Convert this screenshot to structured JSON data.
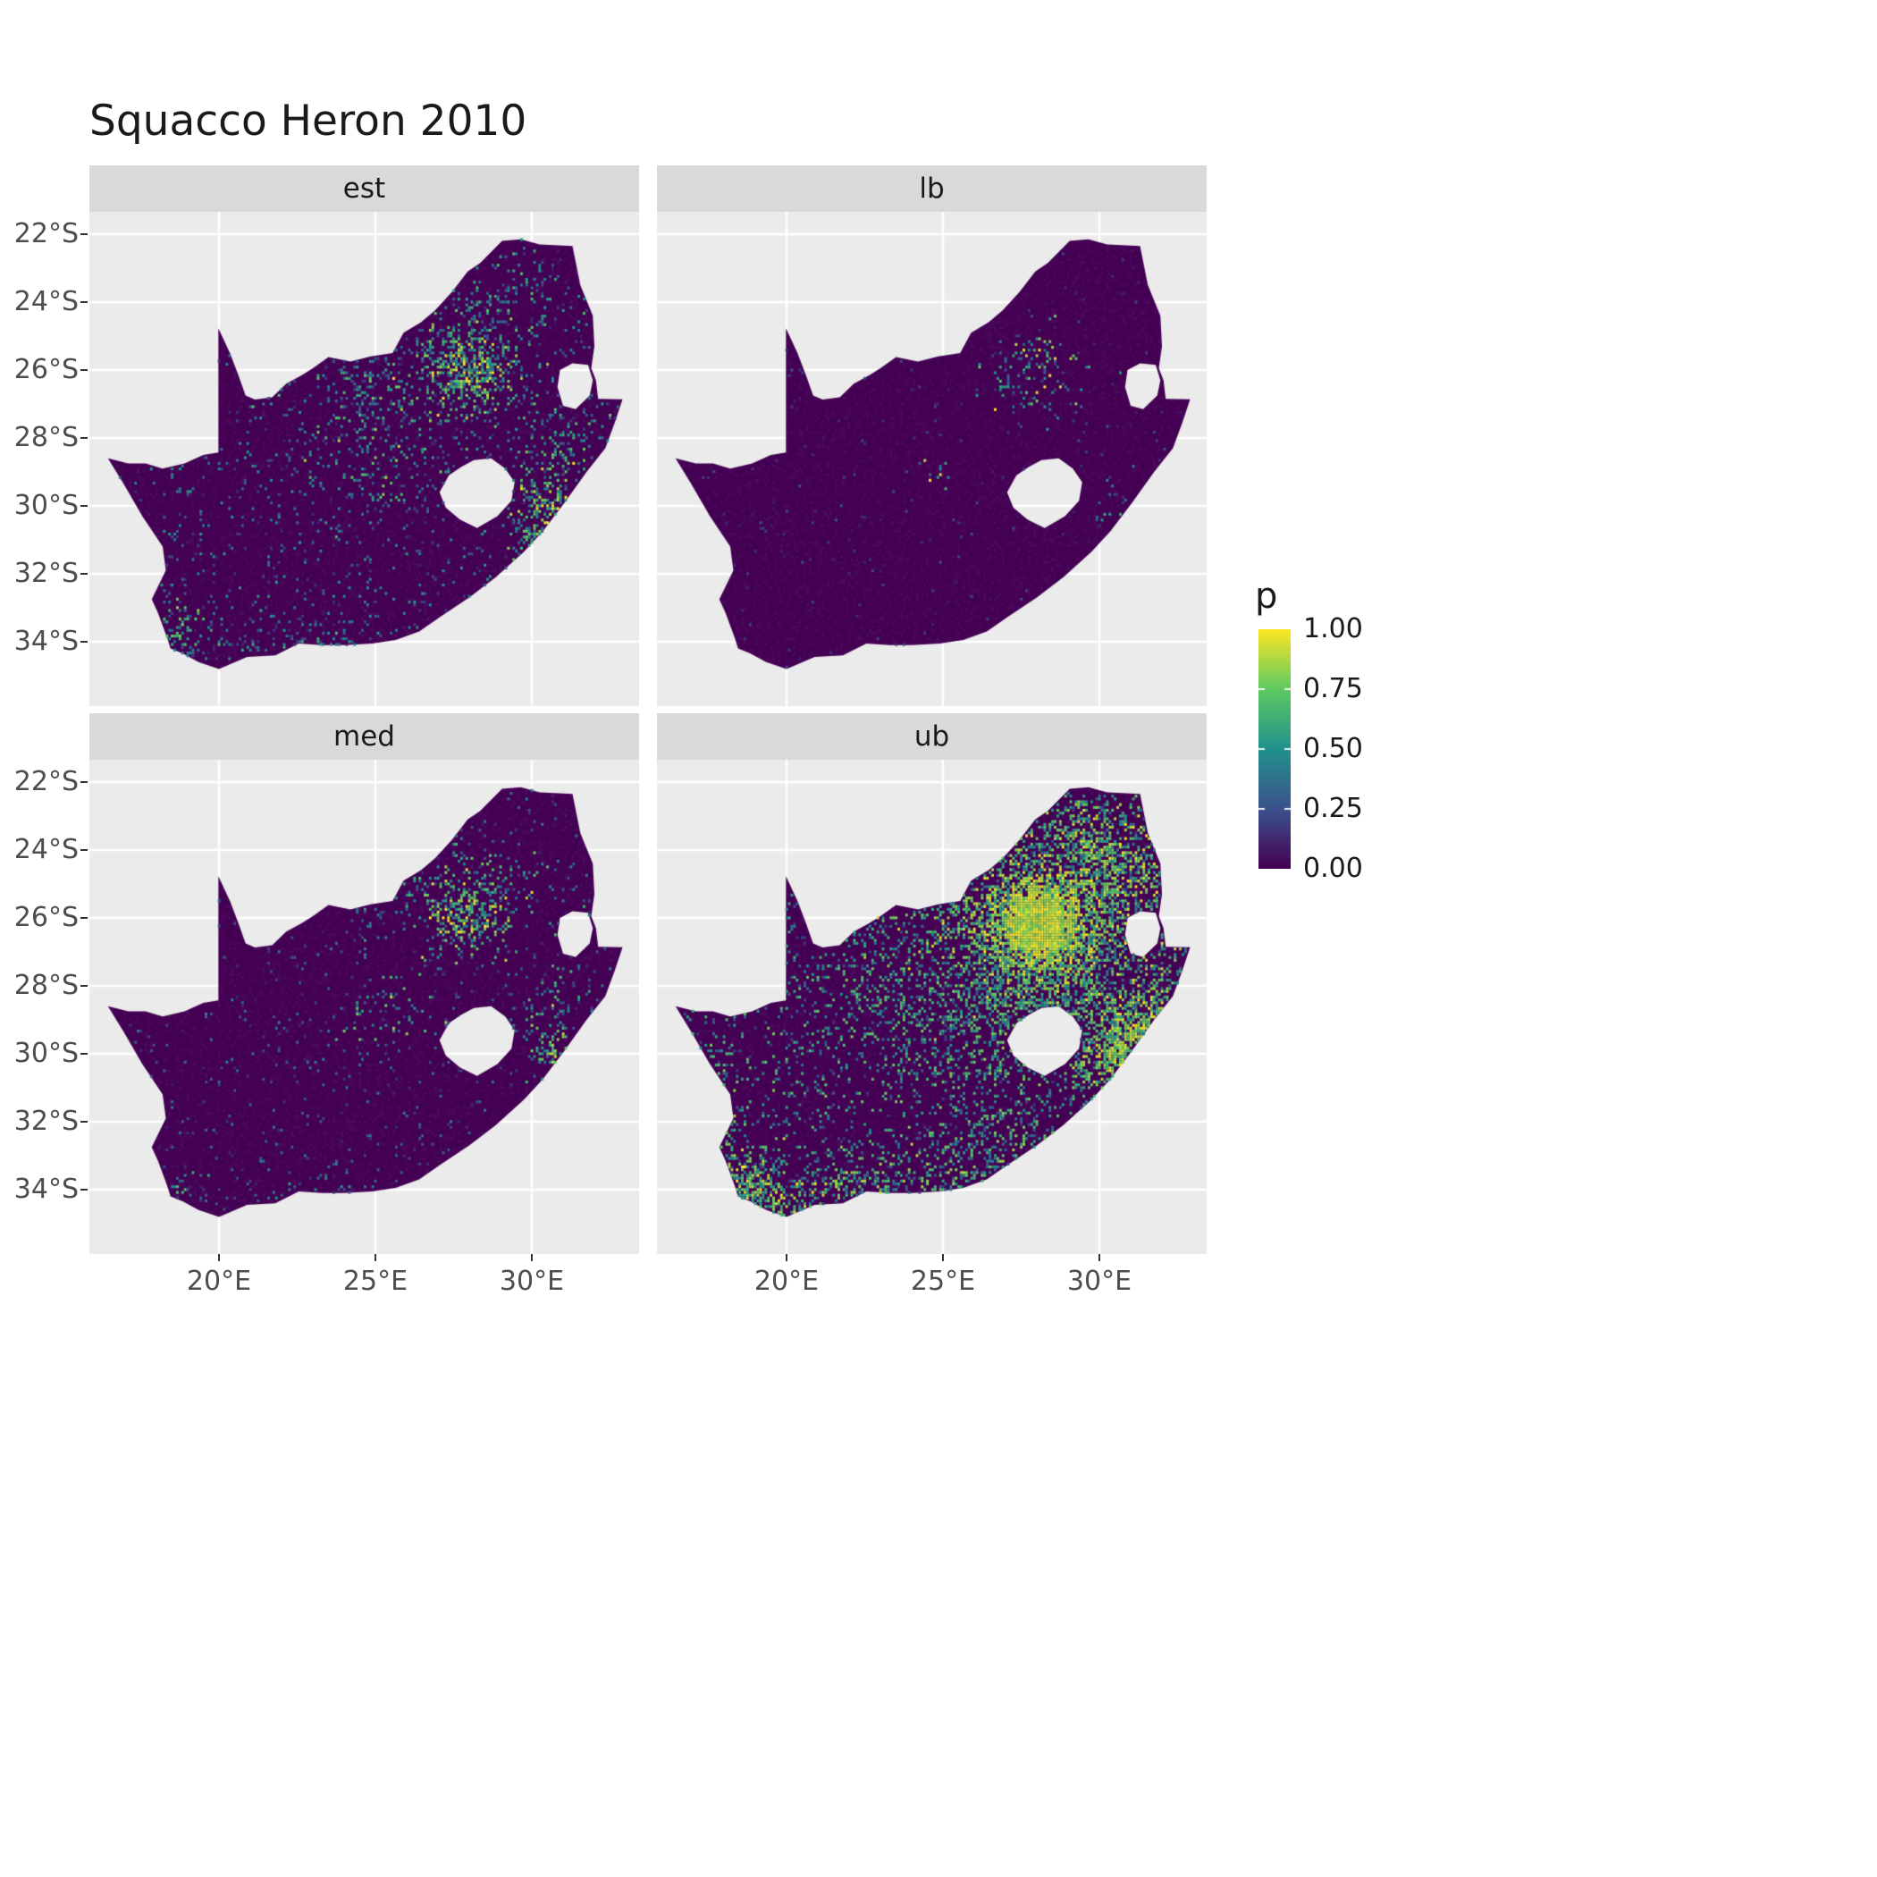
{
  "chart_data": {
    "type": "heatmap",
    "subtype": "faceted-raster-map",
    "title": "Squacco Heron 2010",
    "region": "South Africa pentad grid, occupancy probability",
    "facets": [
      {
        "id": "est",
        "label": "est",
        "description": "Estimated occupancy: mostly near-zero (dark purple) with scattered teal speckles countrywide, a bright yellow-green cluster around Gauteng (27-29E, 25-27S), speckles along the KwaZulu-Natal coast and the southwestern Cape."
      },
      {
        "id": "lb",
        "label": "lb",
        "description": "Lower bound: almost entirely near-zero dark purple with only a few isolated bright cells near Gauteng and one or two isolated dots elsewhere."
      },
      {
        "id": "med",
        "label": "med",
        "description": "Median: mostly dark purple with a moderate speckled cluster around Gauteng, a few bright cells on the KZN coast and southwestern Cape."
      },
      {
        "id": "ub",
        "label": "ub",
        "description": "Upper bound: dense yellow blob over Gauteng spreading into a broad teal/green speckled region across the north-east, yellow along the KZN coast, teal and yellow speckles across the southern and southwestern Cape coasts."
      }
    ],
    "x_ticks": [
      {
        "lon": 20,
        "label": "20°E"
      },
      {
        "lon": 25,
        "label": "25°E"
      },
      {
        "lon": 30,
        "label": "30°E"
      }
    ],
    "y_ticks": [
      {
        "lat": -22,
        "label": "22°S"
      },
      {
        "lat": -24,
        "label": "24°S"
      },
      {
        "lat": -26,
        "label": "26°S"
      },
      {
        "lat": -28,
        "label": "28°S"
      },
      {
        "lat": -30,
        "label": "30°S"
      },
      {
        "lat": -32,
        "label": "32°S"
      },
      {
        "lat": -34,
        "label": "34°S"
      }
    ],
    "x_range_deg": [
      15.86,
      33.43
    ],
    "y_range_deg": [
      -35.9,
      -21.34
    ],
    "legend": {
      "title": "p",
      "ticks": [
        {
          "v": 1.0,
          "label": "1.00"
        },
        {
          "v": 0.75,
          "label": "0.75"
        },
        {
          "v": 0.5,
          "label": "0.50"
        },
        {
          "v": 0.25,
          "label": "0.25"
        },
        {
          "v": 0.0,
          "label": "0.00"
        }
      ]
    },
    "viridis_stops": [
      [
        0.0,
        "#440154"
      ],
      [
        0.25,
        "#3b528b"
      ],
      [
        0.5,
        "#21918c"
      ],
      [
        0.75,
        "#5ec962"
      ],
      [
        1.0,
        "#fde725"
      ]
    ],
    "colors": {
      "panel_bg": "#ebebeb",
      "strip_bg": "#d9d9d9",
      "grid": "#ffffff",
      "base_fill": "#440154",
      "axis_text": "#4d4d4d",
      "title_color": "#1a1a1a"
    },
    "map_outline": [
      [
        16.45,
        -28.6
      ],
      [
        17.1,
        -28.75
      ],
      [
        17.65,
        -28.75
      ],
      [
        18.2,
        -28.9
      ],
      [
        18.9,
        -28.75
      ],
      [
        19.5,
        -28.5
      ],
      [
        19.98,
        -28.43
      ],
      [
        19.98,
        -24.77
      ],
      [
        20.35,
        -25.5
      ],
      [
        20.62,
        -26.15
      ],
      [
        20.85,
        -26.75
      ],
      [
        21.15,
        -26.87
      ],
      [
        21.7,
        -26.8
      ],
      [
        22.15,
        -26.4
      ],
      [
        22.65,
        -26.15
      ],
      [
        23.0,
        -25.95
      ],
      [
        23.5,
        -25.62
      ],
      [
        24.2,
        -25.75
      ],
      [
        24.85,
        -25.6
      ],
      [
        25.55,
        -25.5
      ],
      [
        25.9,
        -24.9
      ],
      [
        26.45,
        -24.6
      ],
      [
        26.9,
        -24.25
      ],
      [
        27.45,
        -23.7
      ],
      [
        27.95,
        -23.1
      ],
      [
        28.35,
        -22.85
      ],
      [
        29.05,
        -22.2
      ],
      [
        29.65,
        -22.15
      ],
      [
        30.25,
        -22.3
      ],
      [
        31.3,
        -22.35
      ],
      [
        31.55,
        -23.5
      ],
      [
        31.95,
        -24.4
      ],
      [
        32.0,
        -25.3
      ],
      [
        31.9,
        -25.95
      ],
      [
        32.05,
        -26.3
      ],
      [
        32.12,
        -26.85
      ],
      [
        32.9,
        -26.86
      ],
      [
        32.65,
        -27.55
      ],
      [
        32.35,
        -28.3
      ],
      [
        31.75,
        -29.0
      ],
      [
        31.05,
        -29.9
      ],
      [
        30.35,
        -30.75
      ],
      [
        29.75,
        -31.35
      ],
      [
        28.85,
        -32.1
      ],
      [
        28.0,
        -32.7
      ],
      [
        27.1,
        -33.25
      ],
      [
        26.4,
        -33.7
      ],
      [
        25.65,
        -33.95
      ],
      [
        24.9,
        -34.05
      ],
      [
        24.0,
        -34.1
      ],
      [
        23.3,
        -34.1
      ],
      [
        22.55,
        -34.05
      ],
      [
        21.8,
        -34.4
      ],
      [
        20.9,
        -34.45
      ],
      [
        20.0,
        -34.8
      ],
      [
        19.35,
        -34.6
      ],
      [
        18.85,
        -34.35
      ],
      [
        18.45,
        -34.2
      ],
      [
        18.35,
        -33.9
      ],
      [
        18.05,
        -33.15
      ],
      [
        17.85,
        -32.75
      ],
      [
        18.3,
        -31.9
      ],
      [
        18.2,
        -31.2
      ],
      [
        17.55,
        -30.3
      ],
      [
        16.95,
        -29.35
      ]
    ],
    "map_hole_names": [
      "Lesotho",
      "Eswatini"
    ],
    "map_holes": [
      [
        [
          27.05,
          -29.6
        ],
        [
          27.35,
          -29.1
        ],
        [
          27.75,
          -28.85
        ],
        [
          28.15,
          -28.65
        ],
        [
          28.7,
          -28.6
        ],
        [
          29.15,
          -28.9
        ],
        [
          29.45,
          -29.3
        ],
        [
          29.35,
          -29.85
        ],
        [
          28.9,
          -30.3
        ],
        [
          28.25,
          -30.65
        ],
        [
          27.7,
          -30.4
        ],
        [
          27.25,
          -30.05
        ]
      ],
      [
        [
          30.9,
          -26.0
        ],
        [
          31.3,
          -25.8
        ],
        [
          31.8,
          -25.85
        ],
        [
          31.95,
          -26.3
        ],
        [
          31.85,
          -26.75
        ],
        [
          31.4,
          -27.15
        ],
        [
          31.0,
          -27.05
        ],
        [
          30.82,
          -26.5
        ]
      ]
    ],
    "facet_patterns": {
      "est": {
        "seed": 101,
        "sprinkle": {
          "prob": 0.055,
          "v0": 0.08,
          "v1": 0.55
        },
        "hotspots": [
          {
            "lon": 28.0,
            "lat": -26.0,
            "rx": 0.9,
            "ry": 0.8,
            "prob": 0.75,
            "v0": 0.35,
            "v1": 1.0
          },
          {
            "lon": 27.8,
            "lat": -25.6,
            "rx": 1.8,
            "ry": 1.4,
            "prob": 0.25,
            "v0": 0.2,
            "v1": 0.85
          },
          {
            "lon": 30.6,
            "lat": -29.9,
            "rx": 0.7,
            "ry": 0.9,
            "prob": 0.5,
            "v0": 0.3,
            "v1": 1.0
          },
          {
            "lon": 29.9,
            "lat": -30.8,
            "rx": 0.5,
            "ry": 0.6,
            "prob": 0.35,
            "v0": 0.3,
            "v1": 0.9
          },
          {
            "lon": 18.7,
            "lat": -33.9,
            "rx": 0.8,
            "ry": 0.7,
            "prob": 0.35,
            "v0": 0.2,
            "v1": 0.85
          },
          {
            "lon": 23.0,
            "lat": -34.0,
            "rx": 2.2,
            "ry": 0.5,
            "prob": 0.15,
            "v0": 0.15,
            "v1": 0.7
          },
          {
            "lon": 25.3,
            "lat": -28.7,
            "rx": 1.5,
            "ry": 1.2,
            "prob": 0.12,
            "v0": 0.2,
            "v1": 0.9
          },
          {
            "lon": 24.8,
            "lat": -26.5,
            "rx": 1.5,
            "ry": 1.0,
            "prob": 0.1,
            "v0": 0.2,
            "v1": 0.8
          },
          {
            "lon": 31.0,
            "lat": -28.2,
            "rx": 1.0,
            "ry": 1.0,
            "prob": 0.2,
            "v0": 0.2,
            "v1": 0.8
          },
          {
            "lon": 29.5,
            "lat": -23.8,
            "rx": 1.5,
            "ry": 1.0,
            "prob": 0.1,
            "v0": 0.15,
            "v1": 0.7
          },
          {
            "lon": 24.6,
            "lat": -27.3,
            "rx": 0.25,
            "ry": 2.2,
            "prob": 0.3,
            "v0": 0.15,
            "v1": 0.6
          }
        ]
      },
      "lb": {
        "seed": 202,
        "sprinkle": {
          "prob": 0.012,
          "v0": 0.05,
          "v1": 0.25
        },
        "hotspots": [
          {
            "lon": 28.0,
            "lat": -25.8,
            "rx": 1.0,
            "ry": 0.9,
            "prob": 0.18,
            "v0": 0.2,
            "v1": 1.0
          },
          {
            "lon": 27.6,
            "lat": -26.5,
            "rx": 1.5,
            "ry": 1.0,
            "prob": 0.06,
            "v0": 0.1,
            "v1": 0.6
          },
          {
            "lon": 30.6,
            "lat": -29.9,
            "rx": 0.6,
            "ry": 0.6,
            "prob": 0.08,
            "v0": 0.15,
            "v1": 0.7
          },
          {
            "lon": 25.0,
            "lat": -28.9,
            "rx": 0.4,
            "ry": 0.4,
            "prob": 0.15,
            "v0": 0.3,
            "v1": 1.0
          }
        ]
      },
      "med": {
        "seed": 303,
        "sprinkle": {
          "prob": 0.03,
          "v0": 0.08,
          "v1": 0.45
        },
        "hotspots": [
          {
            "lon": 28.0,
            "lat": -25.9,
            "rx": 1.0,
            "ry": 0.9,
            "prob": 0.55,
            "v0": 0.3,
            "v1": 1.0
          },
          {
            "lon": 27.8,
            "lat": -25.3,
            "rx": 1.8,
            "ry": 1.2,
            "prob": 0.18,
            "v0": 0.2,
            "v1": 0.8
          },
          {
            "lon": 30.6,
            "lat": -29.9,
            "rx": 0.7,
            "ry": 0.8,
            "prob": 0.3,
            "v0": 0.25,
            "v1": 0.95
          },
          {
            "lon": 18.7,
            "lat": -33.9,
            "rx": 0.7,
            "ry": 0.6,
            "prob": 0.2,
            "v0": 0.15,
            "v1": 0.8
          },
          {
            "lon": 25.3,
            "lat": -28.7,
            "rx": 1.2,
            "ry": 1.0,
            "prob": 0.08,
            "v0": 0.2,
            "v1": 0.9
          },
          {
            "lon": 23.0,
            "lat": -34.1,
            "rx": 2.0,
            "ry": 0.4,
            "prob": 0.08,
            "v0": 0.1,
            "v1": 0.6
          },
          {
            "lon": 31.0,
            "lat": -28.3,
            "rx": 0.9,
            "ry": 0.9,
            "prob": 0.1,
            "v0": 0.15,
            "v1": 0.7
          },
          {
            "lon": 24.6,
            "lat": -27.3,
            "rx": 0.25,
            "ry": 2.0,
            "prob": 0.15,
            "v0": 0.15,
            "v1": 0.6
          }
        ]
      },
      "ub": {
        "seed": 404,
        "sprinkle": {
          "prob": 0.1,
          "v0": 0.15,
          "v1": 0.8
        },
        "hotspots": [
          {
            "lon": 28.1,
            "lat": -26.1,
            "rx": 1.1,
            "ry": 1.0,
            "prob": 1.5,
            "v0": 0.75,
            "v1": 1.0
          },
          {
            "lon": 28.0,
            "lat": -26.3,
            "rx": 2.2,
            "ry": 1.8,
            "prob": 0.75,
            "v0": 0.4,
            "v1": 1.0
          },
          {
            "lon": 28.5,
            "lat": -27.8,
            "rx": 3.2,
            "ry": 2.6,
            "prob": 0.4,
            "v0": 0.3,
            "v1": 0.85
          },
          {
            "lon": 30.7,
            "lat": -29.9,
            "rx": 0.9,
            "ry": 1.1,
            "prob": 0.9,
            "v0": 0.55,
            "v1": 1.0
          },
          {
            "lon": 31.6,
            "lat": -28.7,
            "rx": 0.9,
            "ry": 0.9,
            "prob": 0.5,
            "v0": 0.4,
            "v1": 1.0
          },
          {
            "lon": 30.3,
            "lat": -24.6,
            "rx": 1.6,
            "ry": 1.3,
            "prob": 0.5,
            "v0": 0.35,
            "v1": 1.0
          },
          {
            "lon": 29.3,
            "lat": -23.3,
            "rx": 1.8,
            "ry": 1.0,
            "prob": 0.3,
            "v0": 0.3,
            "v1": 0.9
          },
          {
            "lon": 18.8,
            "lat": -33.9,
            "rx": 1.0,
            "ry": 0.9,
            "prob": 0.65,
            "v0": 0.35,
            "v1": 1.0
          },
          {
            "lon": 20.5,
            "lat": -34.3,
            "rx": 1.6,
            "ry": 0.5,
            "prob": 0.4,
            "v0": 0.3,
            "v1": 1.0
          },
          {
            "lon": 23.5,
            "lat": -33.9,
            "rx": 2.2,
            "ry": 0.8,
            "prob": 0.25,
            "v0": 0.25,
            "v1": 0.9
          },
          {
            "lon": 26.5,
            "lat": -32.8,
            "rx": 1.5,
            "ry": 1.2,
            "prob": 0.25,
            "v0": 0.25,
            "v1": 0.85
          },
          {
            "lon": 24.5,
            "lat": -28.6,
            "rx": 2.5,
            "ry": 1.8,
            "prob": 0.18,
            "v0": 0.2,
            "v1": 0.8
          },
          {
            "lon": 17.8,
            "lat": -31.5,
            "rx": 0.8,
            "ry": 1.2,
            "prob": 0.2,
            "v0": 0.25,
            "v1": 0.9
          }
        ]
      }
    }
  }
}
